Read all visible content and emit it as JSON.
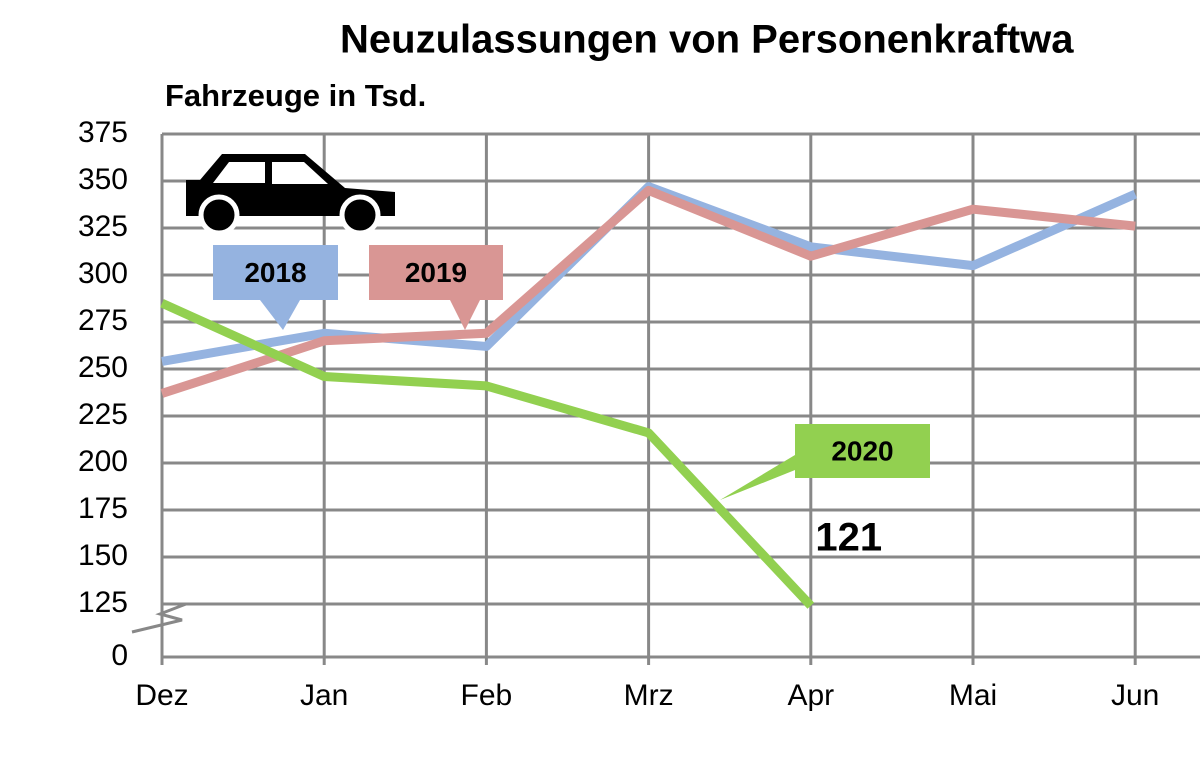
{
  "chart_data": {
    "type": "line",
    "title": "Neuzulassungen von Personenkraftwa",
    "subtitle": "Fahrzeuge in Tsd.",
    "categories": [
      "Dez",
      "Jan",
      "Feb",
      "Mrz",
      "Apr",
      "Mai",
      "Jun"
    ],
    "series": [
      {
        "name": "2018",
        "color": "#95b3e0",
        "values": [
          254,
          269,
          262,
          347,
          315,
          305,
          343
        ]
      },
      {
        "name": "2019",
        "color": "#d99694",
        "values": [
          237,
          265,
          269,
          345,
          310,
          335,
          326
        ]
      },
      {
        "name": "2020",
        "color": "#92d050",
        "values": [
          285,
          246,
          241,
          216,
          121,
          null,
          null
        ],
        "value_labels": [
          null,
          null,
          null,
          null,
          "121",
          null,
          null
        ]
      }
    ],
    "ylim": [
      0,
      375
    ],
    "yticks": [
      0,
      125,
      150,
      175,
      200,
      225,
      250,
      275,
      300,
      325,
      350,
      375
    ],
    "grid": true
  }
}
